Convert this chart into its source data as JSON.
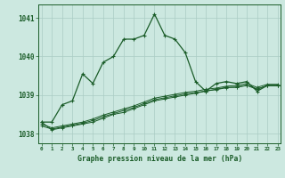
{
  "title": "Graphe pression niveau de la mer (hPa)",
  "hours": [
    0,
    1,
    2,
    3,
    4,
    5,
    6,
    7,
    8,
    9,
    10,
    11,
    12,
    13,
    14,
    15,
    16,
    17,
    18,
    19,
    20,
    21,
    22,
    23
  ],
  "ylim": [
    1037.75,
    1041.35
  ],
  "yticks": [
    1038,
    1039,
    1040,
    1041
  ],
  "xlim": [
    -0.3,
    23.3
  ],
  "bg_color": "#cce8e0",
  "grid_color": "#aaccc4",
  "line_color": "#1a5c28",
  "line1": [
    1038.3,
    1038.3,
    1038.75,
    1038.85,
    1039.55,
    1039.3,
    1039.85,
    1040.0,
    1040.45,
    1040.45,
    1040.55,
    1041.1,
    1040.55,
    1040.45,
    1040.1,
    1039.35,
    1039.1,
    1039.3,
    1039.35,
    1039.3,
    1039.35,
    1039.1,
    1039.25,
    1039.25
  ],
  "line2": [
    1038.3,
    1038.1,
    1038.15,
    1038.2,
    1038.25,
    1038.3,
    1038.4,
    1038.5,
    1038.55,
    1038.65,
    1038.75,
    1038.85,
    1038.9,
    1038.95,
    1039.0,
    1039.05,
    1039.1,
    1039.15,
    1039.2,
    1039.2,
    1039.25,
    1039.15,
    1039.25,
    1039.25
  ],
  "line3": [
    1038.25,
    1038.15,
    1038.2,
    1038.25,
    1038.3,
    1038.38,
    1038.48,
    1038.56,
    1038.64,
    1038.72,
    1038.82,
    1038.92,
    1038.97,
    1039.02,
    1039.07,
    1039.1,
    1039.15,
    1039.18,
    1039.23,
    1039.25,
    1039.3,
    1039.2,
    1039.28,
    1039.28
  ],
  "line4": [
    1038.2,
    1038.12,
    1038.17,
    1038.22,
    1038.27,
    1038.34,
    1038.44,
    1038.52,
    1038.6,
    1038.68,
    1038.78,
    1038.88,
    1038.93,
    1038.98,
    1039.03,
    1039.06,
    1039.11,
    1039.14,
    1039.19,
    1039.21,
    1039.26,
    1039.16,
    1039.24,
    1039.24
  ]
}
